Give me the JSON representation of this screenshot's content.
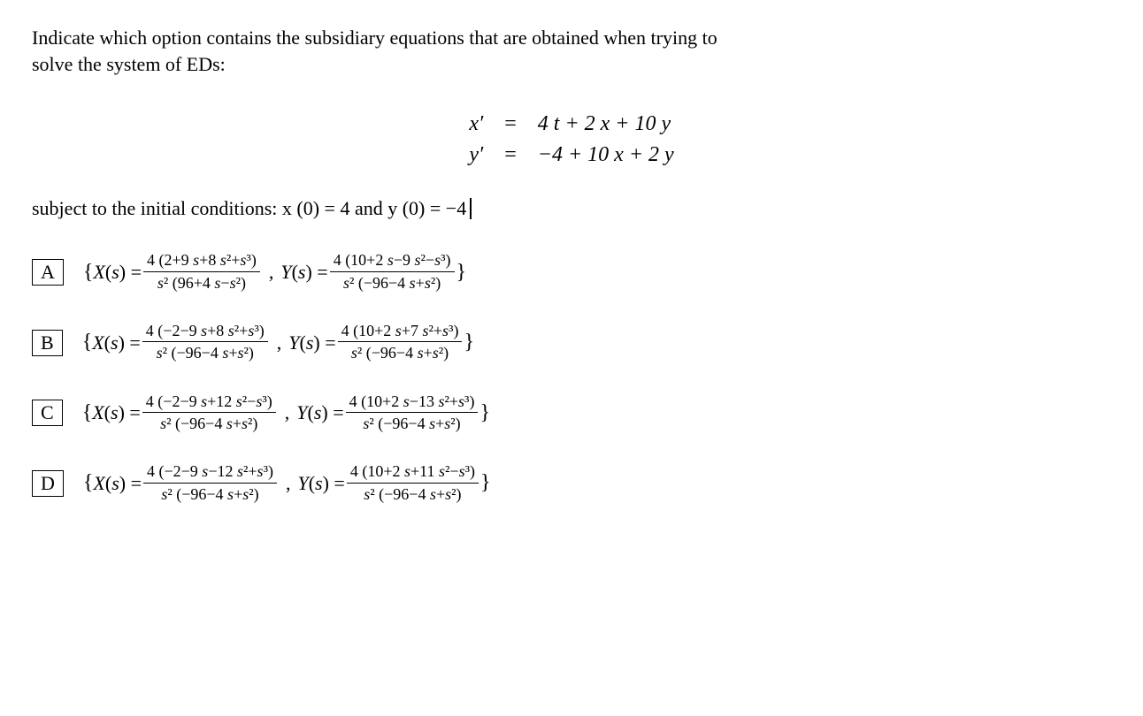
{
  "intro_line_1": "Indicate which option contains the subsidiary equations that are obtained when trying to",
  "intro_line_2": "solve the system of EDs:",
  "system": {
    "row1": {
      "left": "x′",
      "eq": "=",
      "right": "4 t + 2 x + 10 y"
    },
    "row2": {
      "left": "y′",
      "eq": "=",
      "right": "−4 + 10 x + 2 y"
    }
  },
  "ic_text": "subject to the initial conditions: x (0) = 4 and y (0) = −4",
  "options": [
    {
      "label": "A",
      "x_num": "4 (2+9 s+8 s²+s³)",
      "x_den": "s² (96+4 s−s²)",
      "y_num": "4 (10+2 s−9 s²−s³)",
      "y_den": "s² (−96−4 s+s²)"
    },
    {
      "label": "B",
      "x_num": "4 (−2−9 s+8 s²+s³)",
      "x_den": "s² (−96−4 s+s²)",
      "y_num": "4 (10+2 s+7 s²+s³)",
      "y_den": "s² (−96−4 s+s²)"
    },
    {
      "label": "C",
      "x_num": "4 (−2−9 s+12 s²−s³)",
      "x_den": "s² (−96−4 s+s²)",
      "y_num": "4 (10+2 s−13 s²+s³)",
      "y_den": "s² (−96−4 s+s²)"
    },
    {
      "label": "D",
      "x_num": "4 (−2−9 s−12 s²+s³)",
      "x_den": "s² (−96−4 s+s²)",
      "y_num": "4 (10+2 s+11 s²−s³)",
      "y_den": "s² (−96−4 s+s²)"
    }
  ]
}
